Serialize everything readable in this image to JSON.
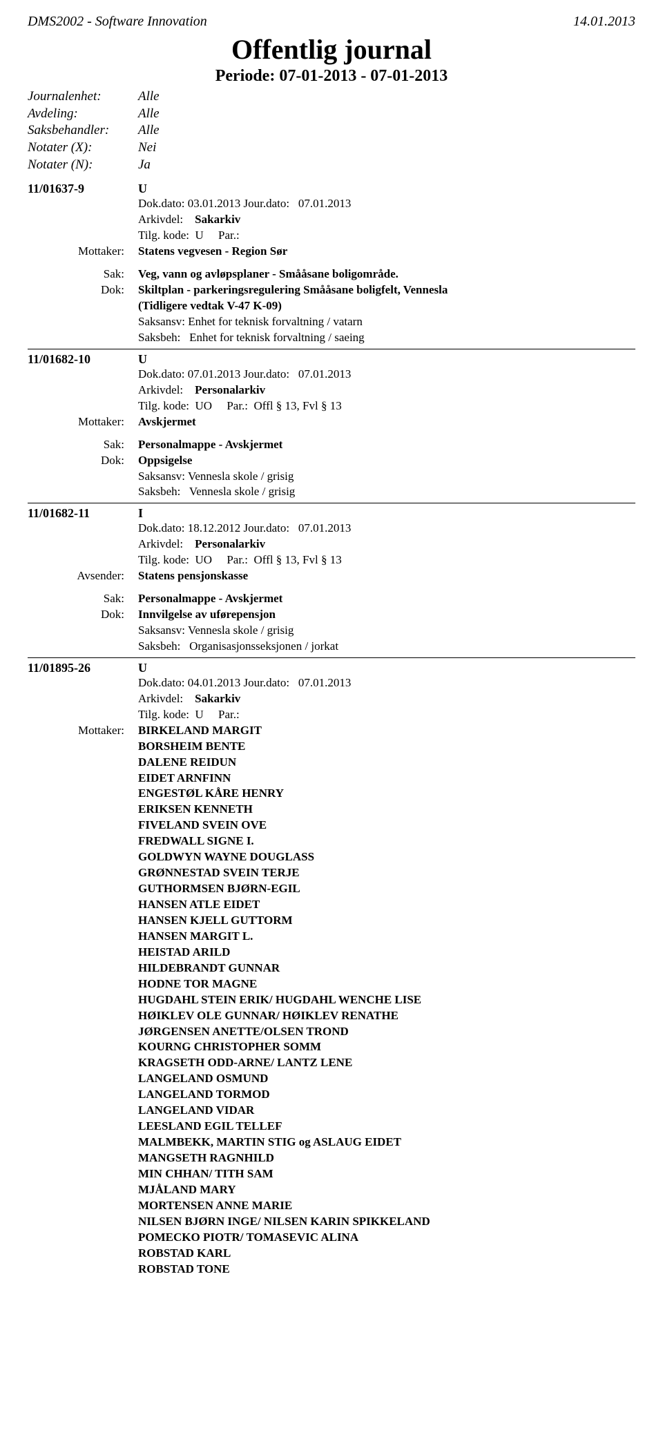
{
  "header": {
    "system": "DMS2002 - Software Innovation",
    "date": "14.01.2013"
  },
  "title": "Offentlig journal",
  "period": "Periode: 07-01-2013 - 07-01-2013",
  "meta": {
    "journalenhet": {
      "label": "Journalenhet:",
      "value": "Alle"
    },
    "avdeling": {
      "label": "Avdeling:",
      "value": "Alle"
    },
    "saksbehandler": {
      "label": "Saksbehandler:",
      "value": "Alle"
    },
    "notaterX": {
      "label": "Notater (X):",
      "value": "Nei"
    },
    "notaterN": {
      "label": "Notater (N):",
      "value": "Ja"
    }
  },
  "entries": [
    {
      "id": "11/01637-9",
      "type": "U",
      "dokdato_lbl": "Dok.dato:",
      "dokdato": "03.01.2013",
      "jourdato_lbl": "Jour.dato:",
      "jourdato": "07.01.2013",
      "arkivdel_lbl": "Arkivdel:",
      "arkivdel": "Sakarkiv",
      "tilg_lbl": "Tilg. kode:",
      "tilg": "U",
      "par_lbl": "Par.:",
      "par": "",
      "party_lbl": "Mottaker:",
      "party": "Statens vegvesen - Region Sør",
      "sak_lbl": "Sak:",
      "sak": "Veg, vann og avløpsplaner - Smååsane boligområde.",
      "dok_lbl": "Dok:",
      "dok_line1": "Skiltplan - parkeringsregulering Smååsane boligfelt, Vennesla",
      "dok_line2": "(Tidligere vedtak V-47 K-09)",
      "saksansv": "Saksansv: Enhet for teknisk forvaltning / vatarn",
      "saksbeh_lbl": "Saksbeh:",
      "saksbeh": "Enhet for teknisk forvaltning / saeing"
    },
    {
      "id": "11/01682-10",
      "type": "U",
      "dokdato_lbl": "Dok.dato:",
      "dokdato": "07.01.2013",
      "jourdato_lbl": "Jour.dato:",
      "jourdato": "07.01.2013",
      "arkivdel_lbl": "Arkivdel:",
      "arkivdel": "Personalarkiv",
      "tilg_lbl": "Tilg. kode:",
      "tilg": "UO",
      "par_lbl": "Par.:",
      "par": "Offl § 13, Fvl § 13",
      "party_lbl": "Mottaker:",
      "party": "Avskjermet",
      "sak_lbl": "Sak:",
      "sak": "Personalmappe - Avskjermet",
      "dok_lbl": "Dok:",
      "dok_line1": "Oppsigelse",
      "dok_line2": "",
      "saksansv": "Saksansv: Vennesla skole / grisig",
      "saksbeh_lbl": "Saksbeh:",
      "saksbeh": "Vennesla skole / grisig"
    },
    {
      "id": "11/01682-11",
      "type": "I",
      "dokdato_lbl": "Dok.dato:",
      "dokdato": "18.12.2012",
      "jourdato_lbl": "Jour.dato:",
      "jourdato": "07.01.2013",
      "arkivdel_lbl": "Arkivdel:",
      "arkivdel": "Personalarkiv",
      "tilg_lbl": "Tilg. kode:",
      "tilg": "UO",
      "par_lbl": "Par.:",
      "par": "Offl § 13, Fvl § 13",
      "party_lbl": "Avsender:",
      "party": "Statens pensjonskasse",
      "sak_lbl": "Sak:",
      "sak": "Personalmappe - Avskjermet",
      "dok_lbl": "Dok:",
      "dok_line1": "Innvilgelse av uførepensjon",
      "dok_line2": "",
      "saksansv": "Saksansv: Vennesla skole / grisig",
      "saksbeh_lbl": "Saksbeh:",
      "saksbeh": "Organisasjonsseksjonen / jorkat"
    },
    {
      "id": "11/01895-26",
      "type": "U",
      "dokdato_lbl": "Dok.dato:",
      "dokdato": "04.01.2013",
      "jourdato_lbl": "Jour.dato:",
      "jourdato": "07.01.2013",
      "arkivdel_lbl": "Arkivdel:",
      "arkivdel": "Sakarkiv",
      "tilg_lbl": "Tilg. kode:",
      "tilg": "U",
      "par_lbl": "Par.:",
      "par": "",
      "party_lbl": "Mottaker:",
      "recipients": [
        "BIRKELAND MARGIT",
        "BORSHEIM BENTE",
        "DALENE REIDUN",
        "EIDET ARNFINN",
        "ENGESTØL KÅRE HENRY",
        "ERIKSEN KENNETH",
        "FIVELAND SVEIN OVE",
        "FREDWALL SIGNE I.",
        "GOLDWYN WAYNE DOUGLASS",
        "GRØNNESTAD SVEIN TERJE",
        "GUTHORMSEN BJØRN-EGIL",
        "HANSEN ATLE EIDET",
        "HANSEN KJELL GUTTORM",
        "HANSEN MARGIT L.",
        "HEISTAD ARILD",
        "HILDEBRANDT GUNNAR",
        "HODNE TOR MAGNE",
        "HUGDAHL STEIN ERIK/ HUGDAHL WENCHE LISE",
        "HØIKLEV OLE GUNNAR/ HØIKLEV RENATHE",
        "JØRGENSEN ANETTE/OLSEN TROND",
        "KOURNG CHRISTOPHER SOMM",
        "KRAGSETH ODD-ARNE/ LANTZ LENE",
        "LANGELAND OSMUND",
        "LANGELAND TORMOD",
        "LANGELAND VIDAR",
        "LEESLAND EGIL TELLEF",
        "MALMBEKK, MARTIN STIG og ASLAUG EIDET",
        "MANGSETH RAGNHILD",
        "MIN CHHAN/ TITH SAM",
        "MJÅLAND MARY",
        "MORTENSEN ANNE MARIE",
        "NILSEN BJØRN INGE/ NILSEN KARIN SPIKKELAND",
        "POMECKO PIOTR/ TOMASEVIC ALINA",
        "ROBSTAD KARL",
        "ROBSTAD TONE"
      ]
    }
  ]
}
